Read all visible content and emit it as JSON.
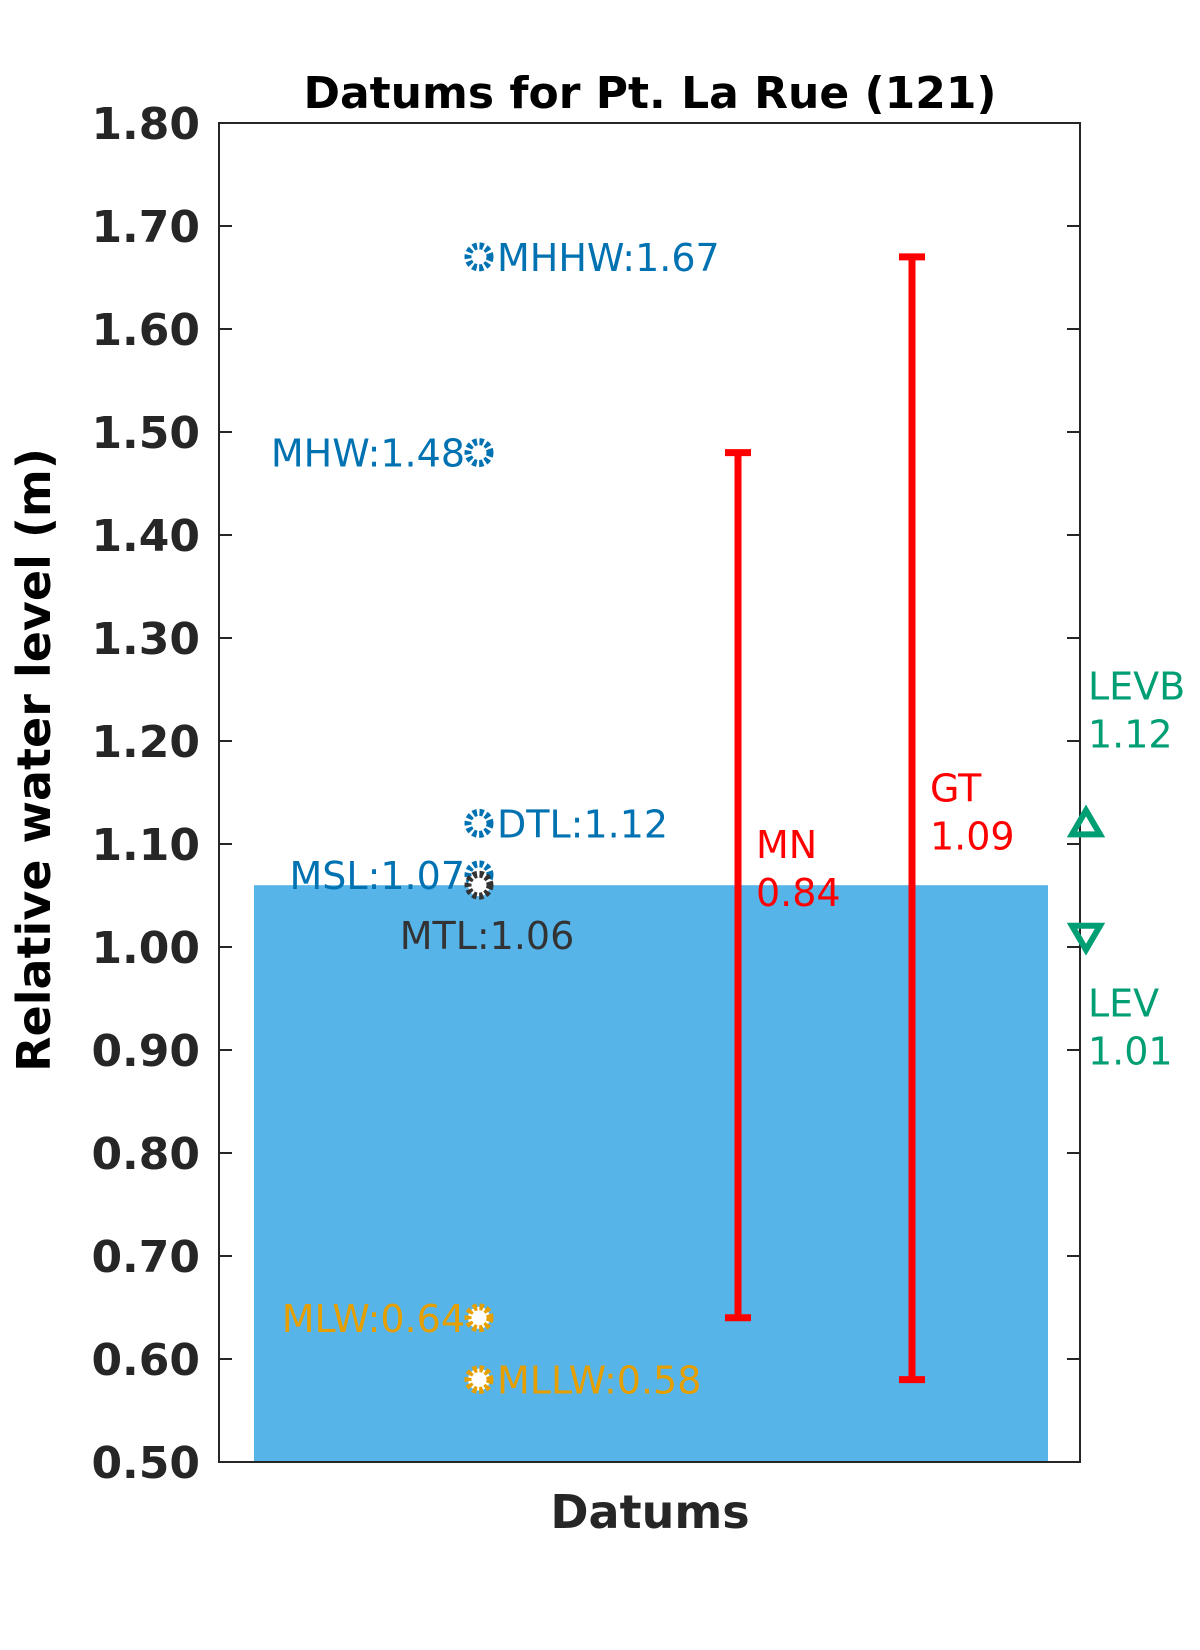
{
  "chart_data": {
    "type": "scatter",
    "title": "Datums for Pt. La Rue (121)",
    "xlabel": "Datums",
    "ylabel": "Relative water level (m)",
    "ylim": [
      0.5,
      1.8
    ],
    "yticks": [
      "0.50",
      "0.60",
      "0.70",
      "0.80",
      "0.90",
      "1.00",
      "1.10",
      "1.20",
      "1.30",
      "1.40",
      "1.50",
      "1.60",
      "1.70",
      "1.80"
    ],
    "grid": false,
    "fill_bar": {
      "value": 1.06,
      "color": "#56b4e9"
    },
    "datums": [
      {
        "name": "MHHW",
        "value": 1.67,
        "label": "MHHW:1.67",
        "color": "#0072b2",
        "label_side": "right"
      },
      {
        "name": "MHW",
        "value": 1.48,
        "label": "MHW:1.48",
        "color": "#0072b2",
        "label_side": "left"
      },
      {
        "name": "DTL",
        "value": 1.12,
        "label": "DTL:1.12",
        "color": "#0072b2",
        "label_side": "right"
      },
      {
        "name": "MSL",
        "value": 1.07,
        "label": "MSL:1.07",
        "color": "#0072b2",
        "label_side": "left"
      },
      {
        "name": "MTL",
        "value": 1.06,
        "label": "MTL:1.06",
        "color": "#333333",
        "label_side": "below"
      },
      {
        "name": "MLW",
        "value": 0.64,
        "label": "MLW:0.64",
        "color": "#e69f00",
        "label_side": "left"
      },
      {
        "name": "MLLW",
        "value": 0.58,
        "label": "MLLW:0.58",
        "color": "#e69f00",
        "label_side": "right"
      }
    ],
    "ranges": [
      {
        "name": "MN",
        "value": "0.84",
        "low": 0.64,
        "high": 1.48,
        "color": "#ff0000"
      },
      {
        "name": "GT",
        "value": "1.09",
        "low": 0.58,
        "high": 1.67,
        "color": "#ff0000"
      }
    ],
    "extremes": [
      {
        "name": "LEVB",
        "value": 1.12,
        "value_text": "1.12",
        "marker": "triangle-up",
        "color": "#009e73"
      },
      {
        "name": "LEV",
        "value": 1.01,
        "value_text": "1.01",
        "marker": "triangle-down",
        "color": "#009e73"
      }
    ]
  }
}
